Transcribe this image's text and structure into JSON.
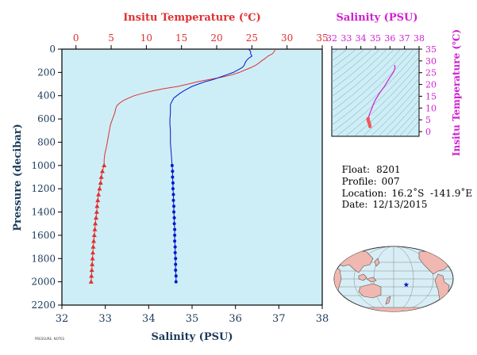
{
  "colors": {
    "temperature": "#e03030",
    "salinity": "#0018d0",
    "ts_curve": "#d020d0",
    "plot_bg": "#cdeef6",
    "axis_text": "#1a3a5a"
  },
  "chart_data": [
    {
      "type": "line",
      "title": "",
      "ylabel": "Pressure (decibar)",
      "ylim": [
        2200,
        0
      ],
      "y_ticks": [
        0,
        200,
        400,
        600,
        800,
        1000,
        1200,
        1400,
        1600,
        1800,
        2000,
        2200
      ],
      "y_tick_labels": [
        "0",
        "200",
        "400",
        "600",
        "800",
        "1000",
        "1200",
        "1400",
        "1600",
        "1800",
        "2000",
        "2200"
      ],
      "top_axis": {
        "label": "Insitu Temperature (℃)",
        "range": [
          -2,
          35
        ],
        "ticks": [
          0,
          5,
          10,
          15,
          20,
          25,
          30,
          35
        ],
        "tick_labels": [
          "0",
          "5",
          "10",
          "15",
          "20",
          "25",
          "30",
          "35"
        ]
      },
      "bottom_axis": {
        "label": "Salinity (PSU)",
        "range": [
          32,
          38
        ],
        "ticks": [
          32,
          33,
          34,
          35,
          36,
          37,
          38
        ],
        "tick_labels": [
          "32",
          "33",
          "34",
          "35",
          "36",
          "37",
          "38"
        ]
      },
      "grid": false,
      "series": [
        {
          "variable": "temperature",
          "axis": "top",
          "pressure": [
            0,
            20,
            40,
            60,
            80,
            100,
            120,
            140,
            160,
            180,
            200,
            220,
            240,
            260,
            280,
            300,
            320,
            340,
            360,
            380,
            400,
            420,
            440,
            460,
            480,
            500,
            550,
            600,
            650,
            700,
            750,
            800,
            850,
            900,
            950,
            1000,
            1050,
            1100,
            1150,
            1200,
            1250,
            1300,
            1350,
            1400,
            1450,
            1500,
            1550,
            1600,
            1650,
            1700,
            1750,
            1800,
            1850,
            1900,
            1950,
            2000
          ],
          "values": [
            28.3,
            28.2,
            27.9,
            27.3,
            26.9,
            26.4,
            26.0,
            25.5,
            24.8,
            24.0,
            23.2,
            22.2,
            20.8,
            19.0,
            17.3,
            16.0,
            14.5,
            12.5,
            10.8,
            9.5,
            8.3,
            7.5,
            6.8,
            6.3,
            5.9,
            5.7,
            5.5,
            5.2,
            4.9,
            4.75,
            4.6,
            4.45,
            4.3,
            4.1,
            4.0,
            4.0,
            3.75,
            3.6,
            3.5,
            3.35,
            3.2,
            3.1,
            3.0,
            2.95,
            2.85,
            2.75,
            2.68,
            2.6,
            2.52,
            2.45,
            2.4,
            2.35,
            2.3,
            2.25,
            2.2,
            2.15
          ],
          "marker_from_pressure": 1000
        },
        {
          "variable": "salinity",
          "axis": "bottom",
          "pressure": [
            0,
            20,
            40,
            60,
            80,
            100,
            120,
            140,
            160,
            180,
            200,
            220,
            240,
            260,
            280,
            300,
            320,
            340,
            360,
            380,
            400,
            420,
            440,
            460,
            480,
            500,
            550,
            600,
            650,
            700,
            750,
            800,
            850,
            900,
            950,
            1000,
            1050,
            1100,
            1150,
            1200,
            1250,
            1300,
            1350,
            1400,
            1450,
            1500,
            1550,
            1600,
            1650,
            1700,
            1750,
            1800,
            1850,
            1900,
            1950,
            2000
          ],
          "values": [
            36.3,
            36.35,
            36.35,
            36.38,
            36.3,
            36.25,
            36.22,
            36.2,
            36.15,
            36.05,
            35.95,
            35.8,
            35.65,
            35.5,
            35.3,
            35.15,
            35.0,
            34.9,
            34.8,
            34.72,
            34.65,
            34.58,
            34.55,
            34.52,
            34.5,
            34.5,
            34.5,
            34.49,
            34.49,
            34.5,
            34.5,
            34.5,
            34.51,
            34.52,
            34.53,
            34.54,
            34.55,
            34.55,
            34.56,
            34.56,
            34.57,
            34.57,
            34.58,
            34.58,
            34.59,
            34.59,
            34.6,
            34.6,
            34.6,
            34.61,
            34.61,
            34.62,
            34.62,
            34.62,
            34.63,
            34.63
          ],
          "marker_from_pressure": 1000
        }
      ]
    },
    {
      "type": "scatter",
      "title": "Salinity (PSU)",
      "xlabel": "",
      "ylabel": "Insitu Temperature (℃)",
      "xlim": [
        32,
        38
      ],
      "ylim": [
        -2,
        35
      ],
      "x_ticks": [
        32,
        33,
        34,
        35,
        36,
        37,
        38
      ],
      "x_tick_labels": [
        "32",
        "33",
        "34",
        "35",
        "36",
        "37",
        "38"
      ],
      "y_ticks": [
        0,
        5,
        10,
        15,
        20,
        25,
        30,
        35
      ],
      "y_tick_labels": [
        "0",
        "5",
        "10",
        "15",
        "20",
        "25",
        "30",
        "35"
      ],
      "series": [
        {
          "x": [
            36.3,
            36.35,
            36.3,
            36.2,
            36.0,
            35.8,
            35.6,
            35.3,
            35.0,
            34.85,
            34.7,
            34.6,
            34.55,
            34.52,
            34.5,
            34.5,
            34.52,
            34.55,
            34.58,
            34.6,
            34.63
          ],
          "y": [
            28.3,
            27.3,
            26.0,
            24.8,
            23.0,
            21.0,
            19.0,
            16.5,
            13.5,
            11.5,
            9.0,
            7.5,
            6.5,
            5.9,
            5.5,
            5.0,
            4.5,
            4.0,
            3.5,
            3.0,
            2.2
          ]
        }
      ],
      "background": "isopycnal contours (no labels)"
    },
    {
      "type": "map",
      "map_type": "world map (Pacific-centred, elliptical projection)",
      "marker": {
        "lat": -16.2,
        "lon": -141.9,
        "symbol": "star"
      }
    }
  ],
  "info": {
    "float_label": "Float:",
    "float_value": "8201",
    "profile_label": "Profile:",
    "profile_value": "007",
    "location_label": "Location:",
    "location_value": "16.2˚S  -141.9˚E",
    "date_label": "Date:",
    "date_value": "12/13/2015"
  },
  "footer": {
    "tiny_text": "PRESSURE, NOTES"
  }
}
